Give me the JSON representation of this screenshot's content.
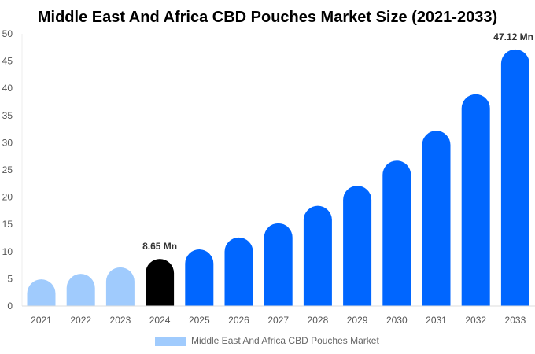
{
  "chart_data": {
    "type": "bar",
    "title": "Middle East And Africa CBD Pouches Market Size (2021-2033)",
    "xlabel": "",
    "ylabel": "",
    "ylim": [
      0,
      50
    ],
    "yticks": [
      0,
      5,
      10,
      15,
      20,
      25,
      30,
      35,
      40,
      45,
      50
    ],
    "grid": false,
    "legend_position": "bottom",
    "categories": [
      "2021",
      "2022",
      "2023",
      "2024",
      "2025",
      "2026",
      "2027",
      "2028",
      "2029",
      "2030",
      "2031",
      "2032",
      "2033"
    ],
    "series": [
      {
        "name": "Middle East And Africa CBD Pouches Market",
        "values": [
          4.9,
          5.9,
          7.1,
          8.65,
          10.4,
          12.6,
          15.2,
          18.4,
          22.1,
          26.7,
          32.2,
          38.9,
          47.12
        ]
      }
    ],
    "data_labels": [
      {
        "category": "2024",
        "text": "8.65 Mn"
      },
      {
        "category": "2033",
        "text": "47.12 Mn"
      }
    ],
    "colors": {
      "historical": "#a0cbfd",
      "base_year": "#000000",
      "forecast": "#0066ff",
      "legend_swatch": "#a0cbfd"
    },
    "base_year": "2024"
  }
}
